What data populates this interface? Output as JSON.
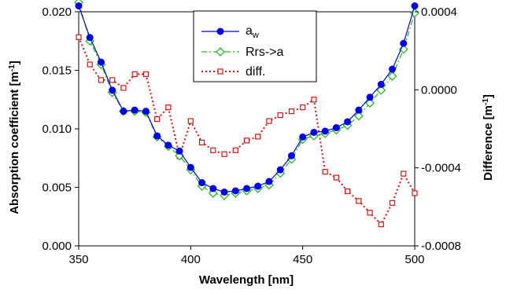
{
  "chart_data": {
    "type": "line",
    "xlabel": "Wavelength [nm]",
    "ylabel_base": "Absorption coefficient [m",
    "ylabel_sup": "-1",
    "ylabel_tail": "]",
    "y2label_base": "Difference [m",
    "y2label_sup": "-1",
    "y2label_tail": "]",
    "xlim": [
      350,
      500
    ],
    "ylim": [
      0,
      0.02
    ],
    "y2lim": [
      -0.0008,
      0.0004
    ],
    "xticks": [
      350,
      400,
      450,
      500
    ],
    "xtick_labels": [
      "350",
      "400",
      "450",
      "500"
    ],
    "yticks": [
      0,
      0.005,
      0.01,
      0.015,
      0.02
    ],
    "ytick_labels": [
      "0.000",
      "0.005",
      "0.010",
      "0.015",
      "0.020"
    ],
    "y2ticks": [
      0.0004,
      0,
      -0.0004,
      -0.0008
    ],
    "y2tick_labels": [
      "0.0004",
      "0.0000",
      "-0.0004",
      "-0.0008"
    ],
    "grid": false,
    "legend_position": "top-center",
    "x": [
      350,
      355,
      360,
      365,
      370,
      375,
      380,
      385,
      390,
      395,
      400,
      405,
      410,
      415,
      420,
      425,
      430,
      435,
      440,
      445,
      450,
      455,
      460,
      465,
      470,
      475,
      480,
      485,
      490,
      495,
      500
    ],
    "series": [
      {
        "name": "a",
        "name_sub": "w",
        "axis": "left",
        "color": "#0000ee",
        "marker": "circle",
        "line_style": "solid",
        "values": [
          0.0205,
          0.0178,
          0.0157,
          0.0133,
          0.0115,
          0.0116,
          0.0115,
          0.0094,
          0.0086,
          0.0081,
          0.0067,
          0.0054,
          0.0049,
          0.0046,
          0.0047,
          0.0049,
          0.0051,
          0.0055,
          0.0065,
          0.0077,
          0.0093,
          0.0097,
          0.0098,
          0.0101,
          0.0106,
          0.0116,
          0.0127,
          0.0138,
          0.0151,
          0.0173,
          0.0205
        ]
      },
      {
        "name": "Rrs->a",
        "axis": "left",
        "color": "#22bb22",
        "marker": "diamond",
        "line_style": "dashdot",
        "values": [
          0.0208,
          0.0175,
          0.0155,
          0.0131,
          0.0115,
          0.0115,
          0.0114,
          0.0093,
          0.0085,
          0.0077,
          0.0065,
          0.0051,
          0.0045,
          0.0043,
          0.0045,
          0.0047,
          0.0049,
          0.0052,
          0.0062,
          0.0074,
          0.0091,
          0.0094,
          0.0096,
          0.0099,
          0.0103,
          0.0111,
          0.0122,
          0.0133,
          0.0145,
          0.0168,
          0.0199
        ]
      },
      {
        "name": "diff.",
        "axis": "right",
        "color": "#dd1111",
        "marker": "square",
        "line_style": "dotted",
        "values": [
          0.00027,
          0.00013,
          5e-05,
          5e-05,
          1e-05,
          8e-05,
          8e-05,
          -0.00015,
          -9e-05,
          -0.00034,
          -0.00016,
          -0.00027,
          -0.00031,
          -0.00033,
          -0.00031,
          -0.00026,
          -0.00024,
          -0.00016,
          -0.00013,
          -0.00011,
          -9e-05,
          -5e-05,
          -0.00042,
          -0.00045,
          -0.00052,
          -0.00057,
          -0.00063,
          -0.00069,
          -0.00058,
          -0.00043,
          -0.00053
        ]
      }
    ]
  }
}
